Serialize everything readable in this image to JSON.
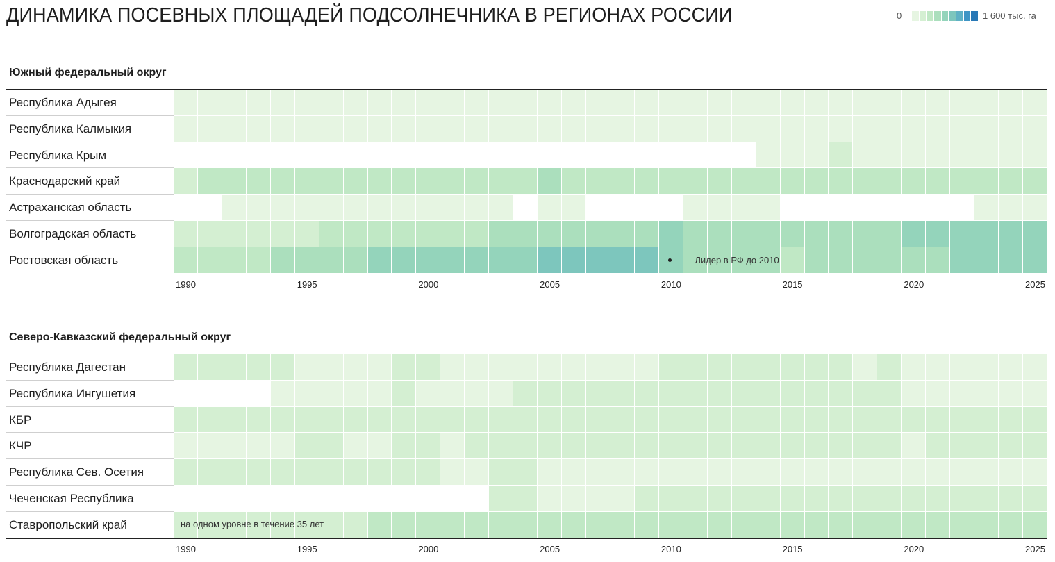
{
  "title": "ДИНАМИКА ПОСЕВНЫХ ПЛОЩАДЕЙ ПОДСОЛНЕЧНИКА В РЕГИОНАХ РОССИИ",
  "legend": {
    "min_label": "0",
    "max_label": "1 600 тыс. га",
    "colors": [
      "#e6f5e2",
      "#d4efd2",
      "#c0e8c5",
      "#abdfbd",
      "#94d4bb",
      "#7dc6bd",
      "#5fb1c5",
      "#3f95c5",
      "#2878b6"
    ]
  },
  "chart_data": [
    {
      "type": "heatmap",
      "title": "Южный федеральный округ",
      "x": [
        1990,
        1991,
        1992,
        1993,
        1994,
        1995,
        1996,
        1997,
        1998,
        1999,
        2000,
        2001,
        2002,
        2003,
        2004,
        2005,
        2006,
        2007,
        2008,
        2009,
        2010,
        2011,
        2012,
        2013,
        2014,
        2015,
        2016,
        2017,
        2018,
        2019,
        2020,
        2021,
        2022,
        2023,
        2024,
        2025
      ],
      "x_ticks": [
        "1990",
        "1995",
        "2000",
        "2005",
        "2010",
        "2015",
        "2020",
        "2025"
      ],
      "value_unit": "тыс. га",
      "value_range": [
        0,
        1600
      ],
      "rows": [
        {
          "name": "Республика Адыгея",
          "values": [
            40,
            40,
            40,
            40,
            40,
            40,
            40,
            40,
            40,
            40,
            40,
            40,
            40,
            80,
            80,
            80,
            80,
            80,
            80,
            100,
            120,
            120,
            120,
            120,
            120,
            120,
            120,
            120,
            120,
            120,
            120,
            120,
            120,
            100,
            100,
            120
          ]
        },
        {
          "name": "Республика Калмыкия",
          "values": [
            30,
            30,
            30,
            30,
            30,
            30,
            30,
            30,
            30,
            30,
            30,
            30,
            30,
            40,
            40,
            40,
            40,
            40,
            40,
            40,
            40,
            40,
            40,
            40,
            40,
            40,
            40,
            40,
            40,
            40,
            40,
            40,
            40,
            40,
            40,
            40
          ]
        },
        {
          "name": "Республика Крым",
          "values": [
            null,
            null,
            null,
            null,
            null,
            null,
            null,
            null,
            null,
            null,
            null,
            null,
            null,
            null,
            null,
            null,
            null,
            null,
            null,
            null,
            null,
            null,
            null,
            null,
            120,
            150,
            150,
            180,
            150,
            150,
            150,
            150,
            150,
            150,
            150,
            150
          ]
        },
        {
          "name": "Краснодарский край",
          "values": [
            320,
            400,
            360,
            360,
            400,
            420,
            400,
            400,
            420,
            420,
            420,
            420,
            420,
            520,
            520,
            560,
            520,
            520,
            480,
            480,
            480,
            440,
            440,
            420,
            440,
            420,
            440,
            420,
            420,
            440,
            440,
            440,
            440,
            520,
            480,
            480
          ]
        },
        {
          "name": "Астраханская область",
          "values": [
            null,
            null,
            20,
            20,
            20,
            20,
            20,
            20,
            20,
            20,
            20,
            20,
            20,
            20,
            null,
            30,
            30,
            null,
            null,
            null,
            null,
            40,
            40,
            40,
            40,
            null,
            null,
            null,
            null,
            null,
            null,
            null,
            null,
            30,
            30,
            30
          ]
        },
        {
          "name": "Волгоградская область",
          "values": [
            280,
            240,
            300,
            320,
            280,
            320,
            360,
            400,
            420,
            480,
            480,
            480,
            480,
            560,
            560,
            560,
            560,
            600,
            600,
            640,
            720,
            640,
            640,
            640,
            640,
            640,
            640,
            640,
            640,
            640,
            720,
            800,
            760,
            720,
            720,
            720
          ]
        },
        {
          "name": "Ростовская область",
          "values": [
            400,
            440,
            480,
            520,
            560,
            700,
            640,
            640,
            720,
            820,
            780,
            760,
            720,
            860,
            860,
            900,
            1000,
            940,
            940,
            920,
            720,
            580,
            560,
            560,
            560,
            520,
            560,
            560,
            560,
            620,
            640,
            700,
            740,
            720,
            780,
            840
          ]
        }
      ],
      "annotations": [
        {
          "year": 2010,
          "text": "Лидер в РФ до 2010"
        }
      ]
    },
    {
      "type": "heatmap",
      "title": "Северо-Кавказский федеральный округ",
      "x": [
        1990,
        1991,
        1992,
        1993,
        1994,
        1995,
        1996,
        1997,
        1998,
        1999,
        2000,
        2001,
        2002,
        2003,
        2004,
        2005,
        2006,
        2007,
        2008,
        2009,
        2010,
        2011,
        2012,
        2013,
        2014,
        2015,
        2016,
        2017,
        2018,
        2019,
        2020,
        2021,
        2022,
        2023,
        2024,
        2025
      ],
      "x_ticks": [
        "1990",
        "1995",
        "2000",
        "2005",
        "2010",
        "2015",
        "2020",
        "2025"
      ],
      "value_unit": "тыс. га",
      "value_range": [
        0,
        1600
      ],
      "rows": [
        {
          "name": "Республика Дагестан",
          "values": [
            280,
            240,
            240,
            180,
            180,
            160,
            140,
            120,
            120,
            240,
            220,
            120,
            120,
            160,
            140,
            160,
            160,
            140,
            140,
            160,
            200,
            240,
            260,
            280,
            240,
            200,
            200,
            200,
            160,
            180,
            160,
            160,
            140,
            120,
            120,
            120
          ]
        },
        {
          "name": "Республика Ингушетия",
          "values": [
            null,
            null,
            null,
            null,
            120,
            120,
            160,
            120,
            140,
            240,
            160,
            120,
            100,
            160,
            180,
            180,
            180,
            180,
            180,
            200,
            240,
            260,
            260,
            260,
            240,
            220,
            240,
            240,
            220,
            180,
            160,
            120,
            100,
            80,
            100,
            120
          ]
        },
        {
          "name": "КБР",
          "values": [
            280,
            280,
            280,
            280,
            280,
            280,
            280,
            280,
            280,
            280,
            280,
            280,
            280,
            280,
            280,
            280,
            280,
            280,
            280,
            280,
            280,
            280,
            280,
            280,
            280,
            280,
            280,
            280,
            280,
            280,
            280,
            280,
            280,
            280,
            280,
            280
          ]
        },
        {
          "name": "КЧР",
          "values": [
            100,
            100,
            100,
            100,
            160,
            200,
            200,
            160,
            140,
            200,
            200,
            120,
            200,
            240,
            240,
            240,
            240,
            240,
            240,
            240,
            240,
            240,
            240,
            240,
            240,
            240,
            240,
            240,
            240,
            240,
            160,
            240,
            240,
            240,
            240,
            240
          ]
        },
        {
          "name": "Республика Сев. Осетия",
          "values": [
            200,
            200,
            200,
            180,
            180,
            200,
            200,
            200,
            200,
            220,
            200,
            120,
            120,
            280,
            200,
            140,
            140,
            120,
            160,
            120,
            80,
            60,
            120,
            120,
            140,
            160,
            140,
            140,
            120,
            60,
            40,
            100,
            100,
            120,
            120,
            120
          ]
        },
        {
          "name": "Чеченская Республика",
          "values": [
            null,
            null,
            null,
            null,
            null,
            null,
            null,
            null,
            null,
            null,
            null,
            null,
            null,
            240,
            200,
            100,
            80,
            80,
            120,
            200,
            260,
            260,
            260,
            260,
            260,
            260,
            260,
            260,
            260,
            260,
            260,
            260,
            260,
            260,
            260,
            260
          ]
        },
        {
          "name": "Ставропольский край",
          "values": [
            300,
            300,
            300,
            300,
            300,
            300,
            300,
            300,
            360,
            400,
            360,
            360,
            360,
            420,
            420,
            420,
            440,
            440,
            440,
            440,
            440,
            440,
            440,
            440,
            460,
            460,
            460,
            460,
            460,
            440,
            440,
            440,
            440,
            440,
            440,
            460
          ]
        }
      ],
      "annotations": [
        {
          "year": 1990,
          "text": "на одном уровне в течение 35 лет"
        }
      ]
    }
  ]
}
